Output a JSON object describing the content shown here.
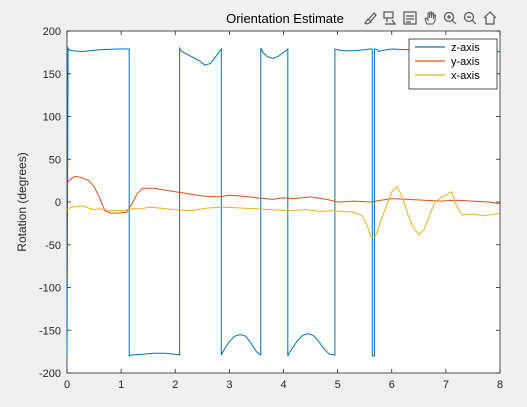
{
  "figure": {
    "background": "#f0f0f0",
    "axes_background": "#ffffff"
  },
  "toolbar": {
    "icons": [
      "brush-icon",
      "data-tips-icon",
      "legend-icon",
      "pan-icon",
      "zoom-in-icon",
      "zoom-out-icon",
      "home-icon"
    ]
  },
  "chart_data": {
    "type": "line",
    "title": "Orientation Estimate",
    "xlabel": "",
    "ylabel": "Rotation (degrees)",
    "xlim": [
      0,
      8
    ],
    "ylim": [
      -200,
      200
    ],
    "xticks": [
      0,
      1,
      2,
      3,
      4,
      5,
      6,
      7,
      8
    ],
    "yticks": [
      -200,
      -150,
      -100,
      -50,
      0,
      50,
      100,
      150,
      200
    ],
    "grid": false,
    "legend_position": "top-right",
    "series": [
      {
        "name": "z-axis",
        "color": "#0072BD",
        "x": [
          0,
          0.02,
          0.04,
          0.1,
          0.3,
          0.6,
          0.9,
          1.15,
          1.15,
          1.2,
          1.4,
          1.6,
          1.8,
          2.0,
          2.08,
          2.08,
          2.12,
          2.3,
          2.45,
          2.55,
          2.65,
          2.75,
          2.85,
          2.85,
          2.88,
          3.0,
          3.1,
          3.2,
          3.3,
          3.4,
          3.5,
          3.58,
          3.58,
          3.62,
          3.7,
          3.8,
          3.9,
          4.0,
          4.08,
          4.08,
          4.12,
          4.25,
          4.35,
          4.45,
          4.55,
          4.65,
          4.75,
          4.85,
          4.95,
          4.95,
          5.0,
          5.1,
          5.3,
          5.5,
          5.58,
          5.62,
          5.64,
          5.64,
          5.68,
          5.68,
          5.72,
          5.74,
          5.76,
          5.8,
          5.9,
          6.0,
          6.3,
          6.5,
          6.8,
          6.9,
          7.2,
          7.5,
          7.8,
          8.0
        ],
        "values": [
          -180,
          180,
          178,
          177,
          176,
          178,
          179,
          179,
          -180,
          -179,
          -178,
          -177,
          -177,
          -178,
          -179,
          180,
          176,
          170,
          165,
          160,
          162,
          170,
          179,
          -179,
          -175,
          -163,
          -157,
          -155,
          -157,
          -165,
          -175,
          -179,
          180,
          175,
          170,
          168,
          170,
          175,
          179,
          -180,
          -175,
          -163,
          -156,
          -154,
          -156,
          -163,
          -172,
          -178,
          -179,
          179,
          178,
          177,
          177,
          178,
          179,
          179,
          178,
          -180,
          -180,
          179,
          178,
          178,
          176,
          177,
          178,
          179,
          178,
          179,
          178,
          179,
          172,
          174,
          175,
          176
        ]
      },
      {
        "name": "y-axis",
        "color": "#D95319",
        "x": [
          0,
          0.05,
          0.15,
          0.25,
          0.4,
          0.5,
          0.6,
          0.7,
          0.8,
          0.95,
          1.1,
          1.2,
          1.3,
          1.4,
          1.6,
          1.8,
          2.0,
          2.2,
          2.5,
          2.8,
          3.0,
          3.2,
          3.5,
          3.8,
          4.0,
          4.2,
          4.5,
          4.8,
          5.0,
          5.3,
          5.6,
          5.8,
          6.0,
          6.3,
          6.6,
          6.9,
          7.2,
          7.5,
          7.8,
          8.0
        ],
        "values": [
          22,
          26,
          30,
          29,
          25,
          18,
          5,
          -10,
          -13,
          -13,
          -12,
          -2,
          10,
          16,
          16,
          14,
          12,
          10,
          7,
          6,
          8,
          7,
          5,
          3,
          5,
          4,
          6,
          3,
          0,
          1,
          0,
          2,
          4,
          3,
          2,
          1,
          2,
          1,
          0,
          -2
        ]
      },
      {
        "name": "x-axis",
        "color": "#EDB120",
        "x": [
          0,
          0.1,
          0.2,
          0.3,
          0.4,
          0.5,
          0.6,
          0.8,
          1.0,
          1.2,
          1.4,
          1.5,
          1.7,
          2.0,
          2.3,
          2.6,
          2.9,
          3.2,
          3.5,
          3.8,
          4.1,
          4.4,
          4.7,
          4.9,
          5.1,
          5.3,
          5.45,
          5.55,
          5.62,
          5.7,
          5.8,
          5.9,
          6.0,
          6.1,
          6.2,
          6.3,
          6.4,
          6.5,
          6.6,
          6.7,
          6.8,
          6.9,
          7.0,
          7.1,
          7.2,
          7.3,
          7.5,
          7.7,
          8.0
        ],
        "values": [
          -8,
          -6,
          -5,
          -5,
          -7,
          -9,
          -8,
          -10,
          -10,
          -8,
          -8,
          -6,
          -7,
          -9,
          -10,
          -7,
          -6,
          -7,
          -8,
          -9,
          -10,
          -9,
          -11,
          -10,
          -11,
          -12,
          -16,
          -28,
          -42,
          -40,
          -22,
          -5,
          12,
          18,
          5,
          -15,
          -30,
          -38,
          -32,
          -15,
          0,
          5,
          8,
          12,
          -5,
          -15,
          -14,
          -16,
          -13
        ]
      }
    ]
  }
}
